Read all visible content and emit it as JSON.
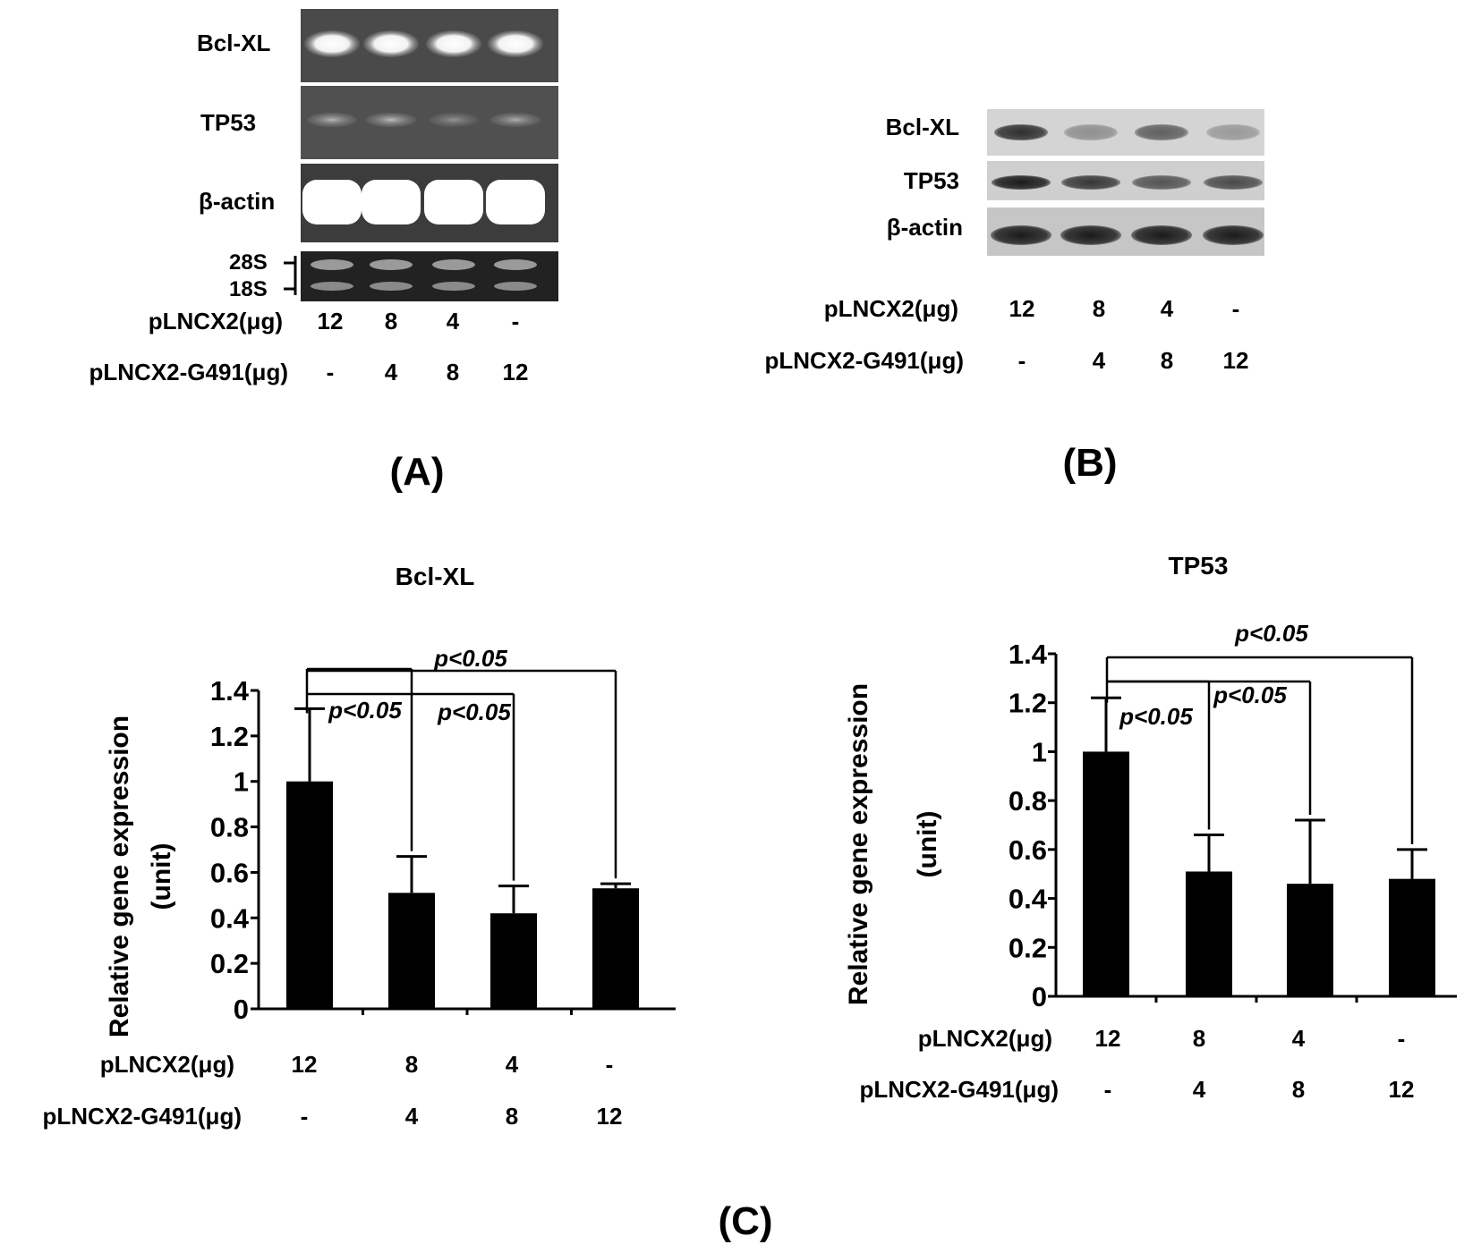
{
  "panels": {
    "A": {
      "label": "(A)",
      "gel_rows": [
        "Bcl-XL",
        "TP53",
        "β-actin"
      ],
      "rrna_markers": [
        "28S",
        "18S"
      ],
      "row_labels": [
        "pLNCX2(μg)",
        "pLNCX2-G491(μg)"
      ],
      "pLNCX2": [
        "12",
        "8",
        "4",
        "-"
      ],
      "pLNCX2_G491": [
        "-",
        "4",
        "8",
        "12"
      ]
    },
    "B": {
      "label": "(B)",
      "blot_rows": [
        "Bcl-XL",
        "TP53",
        "β-actin"
      ],
      "row_labels": [
        "pLNCX2(μg)",
        "pLNCX2-G491(μg)"
      ],
      "pLNCX2": [
        "12",
        "8",
        "4",
        "-"
      ],
      "pLNCX2_G491": [
        "-",
        "4",
        "8",
        "12"
      ]
    },
    "C": {
      "label": "(C)"
    }
  },
  "chart_data": [
    {
      "type": "bar",
      "title": "Bcl-XL",
      "ylabel": "Relative gene expression (unit)",
      "ylabel_lines": [
        "Relative gene expression",
        "(unit)"
      ],
      "ylim": [
        0,
        1.4
      ],
      "yticks": [
        "0",
        "0.2",
        "0.4",
        "0.6",
        "0.8",
        "1",
        "1.2",
        "1.4"
      ],
      "row_labels": [
        "pLNCX2(μg)",
        "pLNCX2-G491(μg)"
      ],
      "categories_pLNCX2": [
        "12",
        "8",
        "4",
        "-"
      ],
      "categories_pLNCX2_G491": [
        "-",
        "4",
        "8",
        "12"
      ],
      "values": [
        1.0,
        0.51,
        0.42,
        0.53
      ],
      "errors": [
        0.32,
        0.16,
        0.12,
        0.02
      ],
      "bar_color": "#000000",
      "significance": [
        {
          "label": "p<0.05",
          "from": 0,
          "to": 1
        },
        {
          "label": "p<0.05",
          "from": 0,
          "to": 2
        },
        {
          "label": "p<0.05",
          "from": 0,
          "to": 3
        }
      ]
    },
    {
      "type": "bar",
      "title": "TP53",
      "ylabel": "Relative gene expression (unit)",
      "ylabel_lines": [
        "Relative gene expression",
        "(unit)"
      ],
      "ylim": [
        0,
        1.4
      ],
      "yticks": [
        "0",
        "0.2",
        "0.4",
        "0.6",
        "0.8",
        "1",
        "1.2",
        "1.4"
      ],
      "row_labels": [
        "pLNCX2(μg)",
        "pLNCX2-G491(μg)"
      ],
      "categories_pLNCX2": [
        "12",
        "8",
        "4",
        "-"
      ],
      "categories_pLNCX2_G491": [
        "-",
        "4",
        "8",
        "12"
      ],
      "values": [
        1.0,
        0.51,
        0.46,
        0.48
      ],
      "errors": [
        0.22,
        0.15,
        0.26,
        0.12
      ],
      "bar_color": "#000000",
      "significance": [
        {
          "label": "p<0.05",
          "from": 0,
          "to": 1
        },
        {
          "label": "p<0.05",
          "from": 0,
          "to": 2
        },
        {
          "label": "p<0.05",
          "from": 0,
          "to": 3
        }
      ]
    }
  ]
}
